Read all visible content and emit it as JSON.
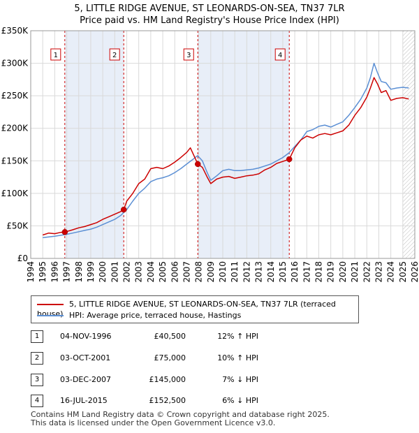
{
  "title": {
    "line1": "5, LITTLE RIDGE AVENUE, ST LEONARDS-ON-SEA, TN37 7LR",
    "line2": "Price paid vs. HM Land Registry's House Price Index (HPI)"
  },
  "colors": {
    "price": "#cc0000",
    "hpi": "#5b8fd4",
    "band": "#e8eef8",
    "marker_line": "#cc0000",
    "grid": "#d9d9d9"
  },
  "legend": {
    "price_label": "5, LITTLE RIDGE AVENUE, ST LEONARDS-ON-SEA, TN37 7LR (terraced house)",
    "hpi_label": "HPI: Average price, terraced house, Hastings"
  },
  "transactions": [
    {
      "num": "1",
      "date": "04-NOV-1996",
      "price": "£40,500",
      "hpi": "12% ↑ HPI"
    },
    {
      "num": "2",
      "date": "03-OCT-2001",
      "price": "£75,000",
      "hpi": "10% ↑ HPI"
    },
    {
      "num": "3",
      "date": "03-DEC-2007",
      "price": "£145,000",
      "hpi": "7% ↓ HPI"
    },
    {
      "num": "4",
      "date": "16-JUL-2015",
      "price": "£152,500",
      "hpi": "6% ↓ HPI"
    }
  ],
  "footer": {
    "line1": "Contains HM Land Registry data © Crown copyright and database right 2025.",
    "line2": "This data is licensed under the Open Government Licence v3.0."
  },
  "chart_data": {
    "type": "line",
    "title": "5, LITTLE RIDGE AVENUE, ST LEONARDS-ON-SEA, TN37 7LR",
    "xlim": [
      1994,
      2026
    ],
    "ylim": [
      0,
      350000
    ],
    "yticks": [
      0,
      50000,
      100000,
      150000,
      200000,
      250000,
      300000,
      350000
    ],
    "ytick_labels": [
      "£0",
      "£50K",
      "£100K",
      "£150K",
      "£200K",
      "£250K",
      "£300K",
      "£350K"
    ],
    "xticks": [
      1994,
      1995,
      1996,
      1997,
      1998,
      1999,
      2000,
      2001,
      2002,
      2003,
      2004,
      2005,
      2006,
      2007,
      2008,
      2009,
      2010,
      2011,
      2012,
      2013,
      2014,
      2015,
      2016,
      2017,
      2018,
      2019,
      2020,
      2021,
      2022,
      2023,
      2024,
      2025,
      2026
    ],
    "shaded_ranges": [
      [
        1996.84,
        2001.75
      ],
      [
        2007.92,
        2015.54
      ]
    ],
    "hatched_from": 2025.0,
    "sales": [
      {
        "label": "1",
        "x": 1996.84,
        "y": 40500
      },
      {
        "label": "2",
        "x": 2001.75,
        "y": 75000
      },
      {
        "label": "3",
        "x": 2007.92,
        "y": 145000
      },
      {
        "label": "4",
        "x": 2015.54,
        "y": 152500
      }
    ],
    "series": [
      {
        "name": "5, LITTLE RIDGE AVENUE, ST LEONARDS-ON-SEA, TN37 7LR (terraced house)",
        "x": [
          1995.0,
          1995.5,
          1996.0,
          1996.5,
          1996.84,
          1997.5,
          1998.0,
          1998.5,
          1999.0,
          1999.5,
          2000.0,
          2000.5,
          2001.0,
          2001.5,
          2001.75,
          2002.0,
          2002.5,
          2003.0,
          2003.5,
          2004.0,
          2004.5,
          2005.0,
          2005.5,
          2006.0,
          2006.5,
          2007.0,
          2007.3,
          2007.6,
          2007.92,
          2008.3,
          2008.7,
          2009.0,
          2009.5,
          2010.0,
          2010.5,
          2011.0,
          2011.5,
          2012.0,
          2012.5,
          2013.0,
          2013.5,
          2014.0,
          2014.5,
          2015.0,
          2015.54,
          2016.0,
          2016.5,
          2017.0,
          2017.5,
          2018.0,
          2018.5,
          2019.0,
          2019.5,
          2020.0,
          2020.5,
          2021.0,
          2021.5,
          2022.0,
          2022.3,
          2022.6,
          2022.9,
          2023.2,
          2023.6,
          2024.0,
          2024.5,
          2025.0,
          2025.5
        ],
        "y": [
          36000,
          39000,
          38000,
          40000,
          40500,
          44000,
          47000,
          49000,
          52000,
          55000,
          60000,
          64000,
          68000,
          72000,
          75000,
          88000,
          100000,
          115000,
          122000,
          138000,
          140000,
          138000,
          142000,
          148000,
          155000,
          163000,
          170000,
          158000,
          145000,
          140000,
          125000,
          115000,
          122000,
          125000,
          126000,
          123000,
          125000,
          127000,
          128000,
          130000,
          136000,
          140000,
          146000,
          149000,
          152500,
          170000,
          182000,
          188000,
          185000,
          190000,
          192000,
          190000,
          193000,
          196000,
          205000,
          220000,
          232000,
          248000,
          262000,
          278000,
          268000,
          255000,
          258000,
          243000,
          246000,
          247000,
          245000
        ]
      },
      {
        "name": "HPI: Average price, terraced house, Hastings",
        "x": [
          1995.0,
          1995.5,
          1996.0,
          1996.5,
          1997.0,
          1997.5,
          1998.0,
          1998.5,
          1999.0,
          1999.5,
          2000.0,
          2000.5,
          2001.0,
          2001.5,
          2002.0,
          2002.5,
          2003.0,
          2003.5,
          2004.0,
          2004.5,
          2005.0,
          2005.5,
          2006.0,
          2006.5,
          2007.0,
          2007.5,
          2007.9,
          2008.3,
          2008.7,
          2009.0,
          2009.5,
          2010.0,
          2010.5,
          2011.0,
          2011.5,
          2012.0,
          2012.5,
          2013.0,
          2013.5,
          2014.0,
          2014.5,
          2015.0,
          2015.5,
          2016.0,
          2016.5,
          2017.0,
          2017.5,
          2018.0,
          2018.5,
          2019.0,
          2019.5,
          2020.0,
          2020.5,
          2021.0,
          2021.5,
          2022.0,
          2022.3,
          2022.6,
          2022.9,
          2023.2,
          2023.6,
          2024.0,
          2024.5,
          2025.0,
          2025.5
        ],
        "y": [
          32000,
          33000,
          34000,
          35500,
          37000,
          39000,
          41000,
          43000,
          45000,
          48000,
          52000,
          56000,
          60000,
          66000,
          75000,
          88000,
          100000,
          108000,
          118000,
          122000,
          124000,
          127000,
          132000,
          138000,
          145000,
          152000,
          158000,
          150000,
          132000,
          120000,
          127000,
          135000,
          137000,
          135000,
          135000,
          136000,
          137000,
          139000,
          142000,
          145000,
          150000,
          155000,
          162000,
          172000,
          182000,
          195000,
          198000,
          203000,
          205000,
          202000,
          206000,
          210000,
          220000,
          232000,
          245000,
          262000,
          278000,
          300000,
          285000,
          272000,
          270000,
          260000,
          262000,
          263000,
          262000
        ]
      }
    ]
  }
}
